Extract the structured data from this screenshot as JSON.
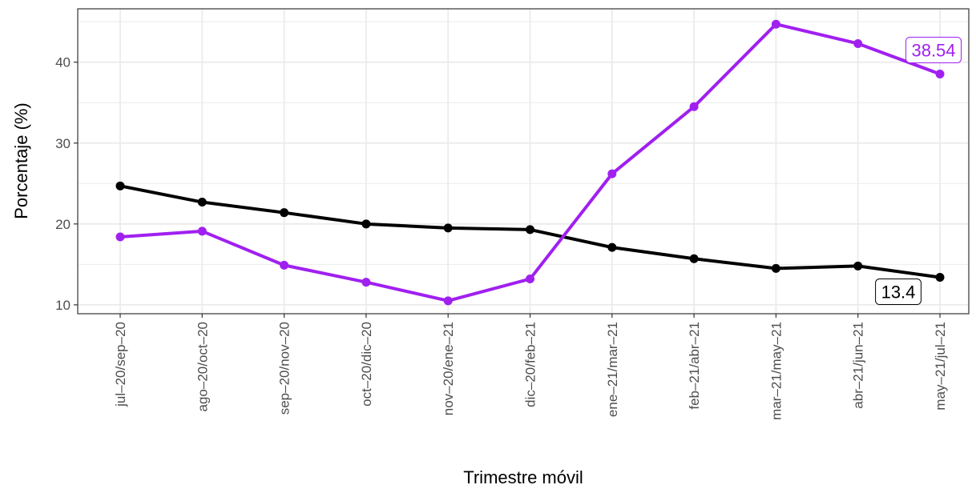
{
  "chart_data": {
    "type": "line",
    "title": "",
    "xlabel": "Trimestre móvil",
    "ylabel": "Porcentaje (%)",
    "categories": [
      "jul–20/sep–20",
      "ago–20/oct–20",
      "sep–20/nov–20",
      "oct–20/dic–20",
      "nov–20/ene–21",
      "dic–20/feb–21",
      "ene–21/mar–21",
      "feb–21/abr–21",
      "mar–21/may–21",
      "abr–21/jun–21",
      "may–21/jul–21"
    ],
    "ylim": [
      8.9,
      46.6
    ],
    "yticks": [
      10,
      20,
      30,
      40
    ],
    "grid": true,
    "legend": "none",
    "series": [
      {
        "color": "#000000",
        "values": [
          24.7,
          22.7,
          21.4,
          20.0,
          19.5,
          19.3,
          17.1,
          15.7,
          14.5,
          14.8,
          13.4
        ],
        "end_label": "13.4"
      },
      {
        "color": "#a020f0",
        "values": [
          18.4,
          19.1,
          14.9,
          12.8,
          10.5,
          13.2,
          26.2,
          34.5,
          44.7,
          42.3,
          38.54
        ],
        "end_label": "38.54"
      }
    ]
  }
}
